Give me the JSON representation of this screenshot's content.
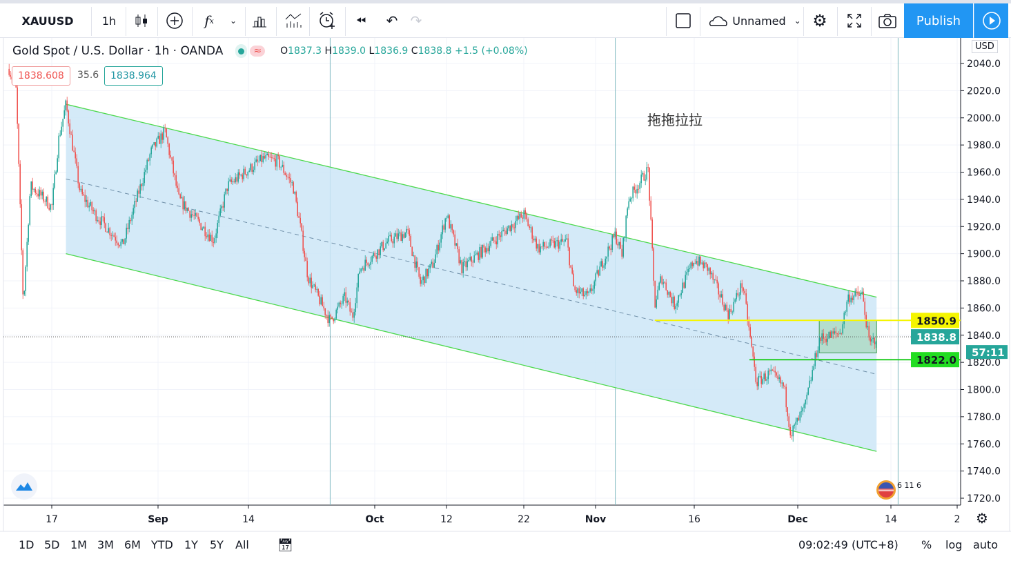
{
  "toolbar": {
    "symbol": "XAUUSD",
    "interval": "1h",
    "layout_name": "Unnamed",
    "publish_label": "Publish",
    "icons": [
      "candles-icon",
      "add-compare-icon",
      "indicators-fx-icon",
      "chevron-down-icon",
      "financials-icon",
      "templates-icon",
      "alert-icon",
      "replay-icon",
      "undo-icon",
      "redo-icon",
      "layout-icon",
      "cloud-icon",
      "settings-icon",
      "fullscreen-icon",
      "camera-icon",
      "play-icon"
    ]
  },
  "legend": {
    "title": "Gold Spot / U.S. Dollar · 1h · OANDA",
    "open_label": "O",
    "open": "1837.3",
    "high_label": "H",
    "high": "1839.0",
    "low_label": "L",
    "low": "1836.9",
    "close_label": "C",
    "close": "1838.8",
    "change": "+1.5 (+0.08%)",
    "bid": "1838.608",
    "spread": "35.6",
    "ask": "1838.964"
  },
  "annotation_text": "拖拖拉拉",
  "price_axis": {
    "currency": "USD",
    "ticks": [
      "2040.0",
      "2020.0",
      "2000.0",
      "1980.0",
      "1960.0",
      "1940.0",
      "1920.0",
      "1900.0",
      "1880.0",
      "1860.0",
      "1840.0",
      "1820.0",
      "1800.0",
      "1780.0",
      "1760.0",
      "1740.0",
      "1720.0"
    ],
    "labels": {
      "yellow_line": "1850.9",
      "last_price": "1838.8",
      "countdown": "57:11",
      "green_line": "1822.0"
    }
  },
  "time_axis": {
    "ticks": [
      "17",
      "Sep",
      "14",
      "Oct",
      "12",
      "22",
      "Nov",
      "16",
      "Dec",
      "14",
      "2"
    ]
  },
  "events_badge": "6 11 6",
  "bottombar": {
    "ranges": [
      "1D",
      "5D",
      "1M",
      "3M",
      "6M",
      "YTD",
      "1Y",
      "5Y",
      "All"
    ],
    "time": "09:02:49 (UTC+8)",
    "percent": "%",
    "log": "log",
    "auto": "auto"
  },
  "colors": {
    "up": "#26a69a",
    "down": "#ef5350",
    "channel_line": "#4cd94c",
    "channel_fill": "#cde6f7",
    "yellow_line": "#f5f500",
    "green_line": "#22cc22",
    "publish": "#2196f3"
  },
  "chart_data": {
    "type": "candlestick",
    "symbol": "XAUUSD",
    "interval": "1h",
    "ylim": [
      1710,
      2050
    ],
    "y_scale": "linear",
    "price_path": [
      [
        "2020-08-11",
        2036
      ],
      [
        "2020-08-12",
        2020
      ],
      [
        "2020-08-13",
        1862
      ],
      [
        "2020-08-14",
        1950
      ],
      [
        "2020-08-16",
        1940
      ],
      [
        "2020-08-17",
        1934
      ],
      [
        "2020-08-18",
        1985
      ],
      [
        "2020-08-19",
        2010
      ],
      [
        "2020-08-21",
        1945
      ],
      [
        "2020-08-23",
        1930
      ],
      [
        "2020-08-27",
        1906
      ],
      [
        "2020-08-31",
        1975
      ],
      [
        "2020-09-02",
        1990
      ],
      [
        "2020-09-04",
        1940
      ],
      [
        "2020-09-09",
        1910
      ],
      [
        "2020-09-11",
        1950
      ],
      [
        "2020-09-16",
        1970
      ],
      [
        "2020-09-18",
        1968
      ],
      [
        "2020-09-20",
        1950
      ],
      [
        "2020-09-21",
        1919
      ],
      [
        "2020-09-22",
        1883
      ],
      [
        "2020-09-25",
        1850
      ],
      [
        "2020-09-27",
        1868
      ],
      [
        "2020-09-28",
        1853
      ],
      [
        "2020-09-29",
        1889
      ],
      [
        "2020-10-03",
        1909
      ],
      [
        "2020-10-06",
        1916
      ],
      [
        "2020-10-08",
        1878
      ],
      [
        "2020-10-10",
        1893
      ],
      [
        "2020-10-12",
        1929
      ],
      [
        "2020-10-14",
        1889
      ],
      [
        "2020-10-18",
        1909
      ],
      [
        "2020-10-22",
        1929
      ],
      [
        "2020-10-24",
        1904
      ],
      [
        "2020-10-28",
        1909
      ],
      [
        "2020-10-29",
        1873
      ],
      [
        "2020-10-31",
        1868
      ],
      [
        "2020-11-02",
        1893
      ],
      [
        "2020-11-04",
        1914
      ],
      [
        "2020-11-05",
        1899
      ],
      [
        "2020-11-06",
        1940
      ],
      [
        "2020-11-09",
        1962
      ],
      [
        "2020-11-10",
        1862
      ],
      [
        "2020-11-11",
        1883
      ],
      [
        "2020-11-13",
        1862
      ],
      [
        "2020-11-16",
        1896
      ],
      [
        "2020-11-18",
        1889
      ],
      [
        "2020-11-21",
        1855
      ],
      [
        "2020-11-23",
        1878
      ],
      [
        "2020-11-24",
        1842
      ],
      [
        "2020-11-25",
        1805
      ],
      [
        "2020-11-27",
        1812
      ],
      [
        "2020-11-29",
        1802
      ],
      [
        "2020-11-30",
        1767
      ],
      [
        "2020-12-02",
        1787
      ],
      [
        "2020-12-03",
        1812
      ],
      [
        "2020-12-04",
        1837
      ],
      [
        "2020-12-07",
        1842
      ],
      [
        "2020-12-08",
        1868
      ],
      [
        "2020-12-10",
        1870
      ],
      [
        "2020-12-11",
        1833
      ],
      [
        "2020-12-12",
        1838.8
      ]
    ],
    "drawings": {
      "parallel_channel": {
        "upper": [
          [
            "2020-08-19",
            2010
          ],
          [
            "2020-12-12",
            1868
          ]
        ],
        "lower": [
          [
            "2020-08-19",
            1900
          ],
          [
            "2020-12-12",
            1754.5
          ]
        ]
      },
      "horizontal_rays": [
        {
          "price": 1850.9,
          "from": "2020-11-10",
          "color": "#f5f500"
        },
        {
          "price": 1822.0,
          "from": "2020-11-24",
          "color": "#22cc22"
        }
      ],
      "rectangle": {
        "from": "2020-12-04",
        "to": "2020-12-12",
        "top": 1850.9,
        "bottom": 1827
      },
      "vertical_lines": [
        "2020-09-25",
        "2020-11-04",
        "2020-12-15"
      ]
    }
  }
}
